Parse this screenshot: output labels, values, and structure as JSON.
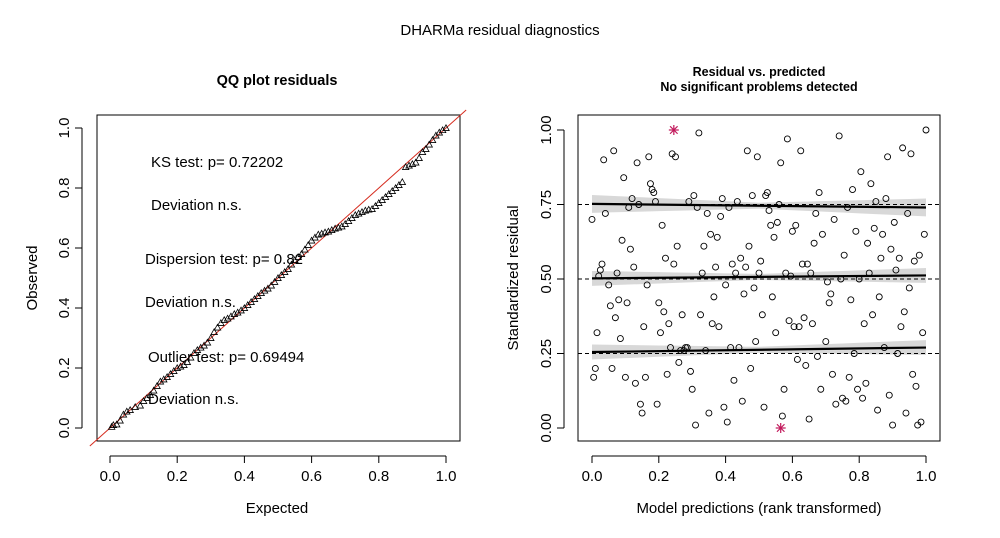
{
  "main_title": "DHARMa residual diagnostics",
  "colors": {
    "reference_line": "#d62d20",
    "outlier": "#c2185b",
    "band": "#bebebe"
  },
  "chart_data": [
    {
      "type": "scatter",
      "title": "QQ plot residuals",
      "xlabel": "Expected",
      "ylabel": "Observed",
      "xlim": [
        0,
        1
      ],
      "ylim": [
        0,
        1
      ],
      "x_ticks": [
        "0.0",
        "0.2",
        "0.4",
        "0.6",
        "0.8",
        "1.0"
      ],
      "y_ticks": [
        "0.0",
        "0.2",
        "0.4",
        "0.6",
        "0.8",
        "1.0"
      ],
      "point_marker": "open-triangle",
      "reference_line": {
        "from": [
          0,
          0
        ],
        "to": [
          1,
          1
        ]
      },
      "annotations": [
        "KS test: p= 0.72202",
        "Deviation  n.s.",
        "Dispersion test: p= 0.82",
        "Deviation  n.s.",
        "Outlier test: p= 0.69494",
        "Deviation  n.s."
      ],
      "series": [
        {
          "points": [
            [
              0.005,
              0.004
            ],
            [
              0.01,
              0.01
            ],
            [
              0.02,
              0.012
            ],
            [
              0.03,
              0.025
            ],
            [
              0.04,
              0.045
            ],
            [
              0.05,
              0.055
            ],
            [
              0.06,
              0.06
            ],
            [
              0.075,
              0.07
            ],
            [
              0.09,
              0.075
            ],
            [
              0.1,
              0.09
            ],
            [
              0.11,
              0.1
            ],
            [
              0.12,
              0.11
            ],
            [
              0.13,
              0.125
            ],
            [
              0.14,
              0.14
            ],
            [
              0.15,
              0.155
            ],
            [
              0.16,
              0.162
            ],
            [
              0.17,
              0.17
            ],
            [
              0.18,
              0.18
            ],
            [
              0.19,
              0.19
            ],
            [
              0.2,
              0.2
            ],
            [
              0.21,
              0.205
            ],
            [
              0.22,
              0.21
            ],
            [
              0.23,
              0.22
            ],
            [
              0.24,
              0.235
            ],
            [
              0.25,
              0.25
            ],
            [
              0.26,
              0.26
            ],
            [
              0.27,
              0.268
            ],
            [
              0.28,
              0.275
            ],
            [
              0.29,
              0.285
            ],
            [
              0.3,
              0.3
            ],
            [
              0.31,
              0.32
            ],
            [
              0.32,
              0.335
            ],
            [
              0.33,
              0.35
            ],
            [
              0.34,
              0.36
            ],
            [
              0.35,
              0.365
            ],
            [
              0.36,
              0.372
            ],
            [
              0.37,
              0.38
            ],
            [
              0.38,
              0.385
            ],
            [
              0.39,
              0.392
            ],
            [
              0.4,
              0.4
            ],
            [
              0.41,
              0.41
            ],
            [
              0.42,
              0.42
            ],
            [
              0.43,
              0.43
            ],
            [
              0.44,
              0.44
            ],
            [
              0.45,
              0.45
            ],
            [
              0.46,
              0.458
            ],
            [
              0.47,
              0.465
            ],
            [
              0.48,
              0.475
            ],
            [
              0.49,
              0.487
            ],
            [
              0.5,
              0.5
            ],
            [
              0.51,
              0.51
            ],
            [
              0.52,
              0.52
            ],
            [
              0.53,
              0.53
            ],
            [
              0.54,
              0.545
            ],
            [
              0.55,
              0.56
            ],
            [
              0.56,
              0.57
            ],
            [
              0.57,
              0.58
            ],
            [
              0.58,
              0.595
            ],
            [
              0.59,
              0.61
            ],
            [
              0.6,
              0.625
            ],
            [
              0.61,
              0.635
            ],
            [
              0.62,
              0.645
            ],
            [
              0.63,
              0.648
            ],
            [
              0.64,
              0.652
            ],
            [
              0.65,
              0.655
            ],
            [
              0.66,
              0.66
            ],
            [
              0.67,
              0.665
            ],
            [
              0.68,
              0.668
            ],
            [
              0.69,
              0.672
            ],
            [
              0.7,
              0.68
            ],
            [
              0.71,
              0.69
            ],
            [
              0.72,
              0.7
            ],
            [
              0.73,
              0.71
            ],
            [
              0.74,
              0.715
            ],
            [
              0.75,
              0.72
            ],
            [
              0.76,
              0.725
            ],
            [
              0.77,
              0.728
            ],
            [
              0.78,
              0.73
            ],
            [
              0.79,
              0.74
            ],
            [
              0.8,
              0.75
            ],
            [
              0.81,
              0.76
            ],
            [
              0.82,
              0.77
            ],
            [
              0.83,
              0.78
            ],
            [
              0.84,
              0.79
            ],
            [
              0.85,
              0.8
            ],
            [
              0.86,
              0.81
            ],
            [
              0.87,
              0.82
            ],
            [
              0.88,
              0.87
            ],
            [
              0.89,
              0.875
            ],
            [
              0.9,
              0.88
            ],
            [
              0.91,
              0.885
            ],
            [
              0.92,
              0.9
            ],
            [
              0.93,
              0.92
            ],
            [
              0.94,
              0.93
            ],
            [
              0.95,
              0.945
            ],
            [
              0.96,
              0.96
            ],
            [
              0.97,
              0.975
            ],
            [
              0.98,
              0.985
            ],
            [
              0.99,
              0.993
            ],
            [
              1.0,
              1.0
            ]
          ]
        }
      ]
    },
    {
      "type": "scatter",
      "title": "Residual vs. predicted",
      "subtitle": "No significant problems detected",
      "xlabel": "Model predictions (rank transformed)",
      "ylabel": "Standardized residual",
      "xlim": [
        0,
        1
      ],
      "ylim": [
        0,
        1
      ],
      "x_ticks": [
        "0.0",
        "0.2",
        "0.4",
        "0.6",
        "0.8",
        "1.0"
      ],
      "y_ticks": [
        "0.00",
        "0.25",
        "0.50",
        "0.75",
        "1.00"
      ],
      "reference_lines_y": [
        0.25,
        0.5,
        0.75
      ],
      "quantile_fits": [
        {
          "quantile": 0.25,
          "y_start": 0.255,
          "y_end": 0.27,
          "band_halfwidth_start": 0.025,
          "band_halfwidth_mid": 0.01,
          "band_halfwidth_end": 0.025
        },
        {
          "quantile": 0.5,
          "y_start": 0.502,
          "y_end": 0.512,
          "band_halfwidth_start": 0.025,
          "band_halfwidth_mid": 0.01,
          "band_halfwidth_end": 0.025
        },
        {
          "quantile": 0.75,
          "y_start": 0.752,
          "y_end": 0.74,
          "band_halfwidth_start": 0.03,
          "band_halfwidth_mid": 0.01,
          "band_halfwidth_end": 0.03
        }
      ],
      "outliers": [
        [
          0.245,
          1.0
        ],
        [
          0.565,
          0.0
        ]
      ],
      "points": [
        [
          0.0,
          0.7
        ],
        [
          0.005,
          0.17
        ],
        [
          0.01,
          0.2
        ],
        [
          0.015,
          0.32
        ],
        [
          0.02,
          0.51
        ],
        [
          0.025,
          0.53
        ],
        [
          0.03,
          0.55
        ],
        [
          0.035,
          0.9
        ],
        [
          0.04,
          0.72
        ],
        [
          0.05,
          0.48
        ],
        [
          0.055,
          0.41
        ],
        [
          0.06,
          0.2
        ],
        [
          0.065,
          0.93
        ],
        [
          0.07,
          0.37
        ],
        [
          0.075,
          0.52
        ],
        [
          0.08,
          0.43
        ],
        [
          0.085,
          0.3
        ],
        [
          0.09,
          0.63
        ],
        [
          0.095,
          0.84
        ],
        [
          0.1,
          0.17
        ],
        [
          0.105,
          0.42
        ],
        [
          0.11,
          0.74
        ],
        [
          0.115,
          0.6
        ],
        [
          0.12,
          0.77
        ],
        [
          0.125,
          0.54
        ],
        [
          0.13,
          0.15
        ],
        [
          0.135,
          0.89
        ],
        [
          0.14,
          0.75
        ],
        [
          0.145,
          0.08
        ],
        [
          0.15,
          0.05
        ],
        [
          0.155,
          0.34
        ],
        [
          0.16,
          0.17
        ],
        [
          0.165,
          0.48
        ],
        [
          0.17,
          0.91
        ],
        [
          0.175,
          0.82
        ],
        [
          0.18,
          0.8
        ],
        [
          0.185,
          0.79
        ],
        [
          0.19,
          0.76
        ],
        [
          0.195,
          0.08
        ],
        [
          0.2,
          0.42
        ],
        [
          0.205,
          0.32
        ],
        [
          0.21,
          0.68
        ],
        [
          0.215,
          0.39
        ],
        [
          0.22,
          0.57
        ],
        [
          0.225,
          0.18
        ],
        [
          0.23,
          0.35
        ],
        [
          0.235,
          0.27
        ],
        [
          0.24,
          0.92
        ],
        [
          0.245,
          0.55
        ],
        [
          0.25,
          0.91
        ],
        [
          0.255,
          0.61
        ],
        [
          0.26,
          0.22
        ],
        [
          0.265,
          0.26
        ],
        [
          0.27,
          0.38
        ],
        [
          0.275,
          0.26
        ],
        [
          0.28,
          0.27
        ],
        [
          0.285,
          0.27
        ],
        [
          0.29,
          0.76
        ],
        [
          0.295,
          0.19
        ],
        [
          0.3,
          0.13
        ],
        [
          0.305,
          0.78
        ],
        [
          0.31,
          0.01
        ],
        [
          0.315,
          0.74
        ],
        [
          0.32,
          0.99
        ],
        [
          0.325,
          0.38
        ],
        [
          0.33,
          0.52
        ],
        [
          0.335,
          0.61
        ],
        [
          0.34,
          0.26
        ],
        [
          0.345,
          0.72
        ],
        [
          0.35,
          0.05
        ],
        [
          0.355,
          0.65
        ],
        [
          0.36,
          0.35
        ],
        [
          0.365,
          0.44
        ],
        [
          0.37,
          0.54
        ],
        [
          0.375,
          0.64
        ],
        [
          0.38,
          0.34
        ],
        [
          0.385,
          0.71
        ],
        [
          0.39,
          0.77
        ],
        [
          0.395,
          0.07
        ],
        [
          0.4,
          0.48
        ],
        [
          0.405,
          0.02
        ],
        [
          0.41,
          0.74
        ],
        [
          0.415,
          0.27
        ],
        [
          0.42,
          0.55
        ],
        [
          0.425,
          0.16
        ],
        [
          0.43,
          0.52
        ],
        [
          0.435,
          0.76
        ],
        [
          0.44,
          0.27
        ],
        [
          0.445,
          0.57
        ],
        [
          0.45,
          0.09
        ],
        [
          0.455,
          0.45
        ],
        [
          0.46,
          0.54
        ],
        [
          0.465,
          0.93
        ],
        [
          0.47,
          0.61
        ],
        [
          0.475,
          0.2
        ],
        [
          0.48,
          0.78
        ],
        [
          0.485,
          0.47
        ],
        [
          0.49,
          0.29
        ],
        [
          0.495,
          0.91
        ],
        [
          0.5,
          0.52
        ],
        [
          0.505,
          0.56
        ],
        [
          0.51,
          0.38
        ],
        [
          0.515,
          0.07
        ],
        [
          0.52,
          0.78
        ],
        [
          0.525,
          0.79
        ],
        [
          0.53,
          0.73
        ],
        [
          0.535,
          0.68
        ],
        [
          0.54,
          0.44
        ],
        [
          0.545,
          0.64
        ],
        [
          0.55,
          0.32
        ],
        [
          0.555,
          0.69
        ],
        [
          0.56,
          0.75
        ],
        [
          0.565,
          0.89
        ],
        [
          0.57,
          0.04
        ],
        [
          0.575,
          0.13
        ],
        [
          0.58,
          0.52
        ],
        [
          0.585,
          0.97
        ],
        [
          0.59,
          0.36
        ],
        [
          0.595,
          0.51
        ],
        [
          0.6,
          0.66
        ],
        [
          0.605,
          0.34
        ],
        [
          0.61,
          0.68
        ],
        [
          0.615,
          0.23
        ],
        [
          0.62,
          0.34
        ],
        [
          0.625,
          0.93
        ],
        [
          0.63,
          0.55
        ],
        [
          0.635,
          0.37
        ],
        [
          0.64,
          0.21
        ],
        [
          0.645,
          0.55
        ],
        [
          0.65,
          0.03
        ],
        [
          0.655,
          0.52
        ],
        [
          0.66,
          0.35
        ],
        [
          0.665,
          0.62
        ],
        [
          0.67,
          0.72
        ],
        [
          0.675,
          0.24
        ],
        [
          0.68,
          0.79
        ],
        [
          0.685,
          0.13
        ],
        [
          0.69,
          0.65
        ],
        [
          0.7,
          0.29
        ],
        [
          0.705,
          0.49
        ],
        [
          0.71,
          0.42
        ],
        [
          0.715,
          0.45
        ],
        [
          0.72,
          0.18
        ],
        [
          0.725,
          0.7
        ],
        [
          0.73,
          0.08
        ],
        [
          0.74,
          0.98
        ],
        [
          0.745,
          0.5
        ],
        [
          0.75,
          0.1
        ],
        [
          0.755,
          0.58
        ],
        [
          0.76,
          0.09
        ],
        [
          0.765,
          0.74
        ],
        [
          0.77,
          0.17
        ],
        [
          0.775,
          0.43
        ],
        [
          0.78,
          0.8
        ],
        [
          0.785,
          0.25
        ],
        [
          0.79,
          0.66
        ],
        [
          0.795,
          0.13
        ],
        [
          0.8,
          0.5
        ],
        [
          0.805,
          0.86
        ],
        [
          0.81,
          0.1
        ],
        [
          0.815,
          0.35
        ],
        [
          0.82,
          0.15
        ],
        [
          0.825,
          0.62
        ],
        [
          0.83,
          0.52
        ],
        [
          0.835,
          0.82
        ],
        [
          0.84,
          0.38
        ],
        [
          0.845,
          0.67
        ],
        [
          0.85,
          0.76
        ],
        [
          0.855,
          0.06
        ],
        [
          0.86,
          0.44
        ],
        [
          0.865,
          0.57
        ],
        [
          0.87,
          0.65
        ],
        [
          0.875,
          0.27
        ],
        [
          0.88,
          0.77
        ],
        [
          0.885,
          0.91
        ],
        [
          0.89,
          0.11
        ],
        [
          0.895,
          0.6
        ],
        [
          0.9,
          0.01
        ],
        [
          0.905,
          0.69
        ],
        [
          0.91,
          0.53
        ],
        [
          0.915,
          0.25
        ],
        [
          0.92,
          0.57
        ],
        [
          0.925,
          0.34
        ],
        [
          0.93,
          0.94
        ],
        [
          0.935,
          0.39
        ],
        [
          0.94,
          0.05
        ],
        [
          0.945,
          0.72
        ],
        [
          0.95,
          0.47
        ],
        [
          0.955,
          0.92
        ],
        [
          0.96,
          0.18
        ],
        [
          0.965,
          0.56
        ],
        [
          0.97,
          0.14
        ],
        [
          0.975,
          0.01
        ],
        [
          0.98,
          0.58
        ],
        [
          0.985,
          0.02
        ],
        [
          0.99,
          0.32
        ],
        [
          0.995,
          0.65
        ],
        [
          1.0,
          1.0
        ]
      ]
    }
  ]
}
